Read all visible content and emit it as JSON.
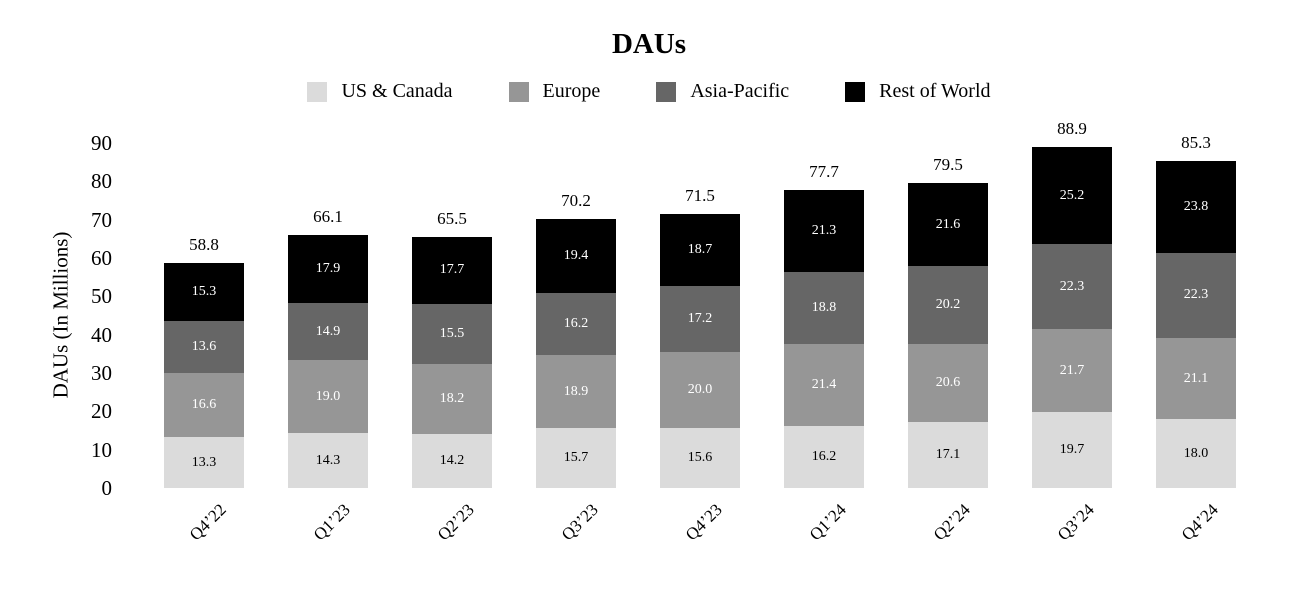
{
  "page": {
    "background_color": "#FFFFFF",
    "text_color": "#000000"
  },
  "chart_data": {
    "type": "bar",
    "variant": "stacked-vertical",
    "title": "DAUs",
    "ylabel": "DAUs (In Millions)",
    "xlabel": "",
    "ylim": [
      0,
      90
    ],
    "yticks": [
      0,
      10,
      20,
      30,
      40,
      50,
      60,
      70,
      80,
      90
    ],
    "grid": false,
    "axis_lines": false,
    "legend_position": "top",
    "value_label_format": "one-decimal",
    "categories": [
      "Q4’22",
      "Q1’23",
      "Q2’23",
      "Q3’23",
      "Q4’23",
      "Q1’24",
      "Q2’24",
      "Q3’24",
      "Q4’24"
    ],
    "totals": [
      58.8,
      66.1,
      65.5,
      70.2,
      71.5,
      77.7,
      79.5,
      88.9,
      85.3
    ],
    "series": [
      {
        "name": "US & Canada",
        "color": "#DBDBDB",
        "label_color": "#000000",
        "values": [
          13.3,
          14.3,
          14.2,
          15.7,
          15.6,
          16.2,
          17.1,
          19.7,
          18.0
        ]
      },
      {
        "name": "Europe",
        "color": "#969696",
        "label_color": "#FFFFFF",
        "values": [
          16.6,
          19.0,
          18.2,
          18.9,
          20.0,
          21.4,
          20.6,
          21.7,
          21.1
        ]
      },
      {
        "name": "Asia-Pacific",
        "color": "#666666",
        "label_color": "#FFFFFF",
        "values": [
          13.6,
          14.9,
          15.5,
          16.2,
          17.2,
          18.8,
          20.2,
          22.3,
          22.3
        ]
      },
      {
        "name": "Rest of World",
        "color": "#000000",
        "label_color": "#FFFFFF",
        "values": [
          15.3,
          17.9,
          17.7,
          19.4,
          18.7,
          21.3,
          21.6,
          25.2,
          23.8
        ]
      }
    ]
  }
}
